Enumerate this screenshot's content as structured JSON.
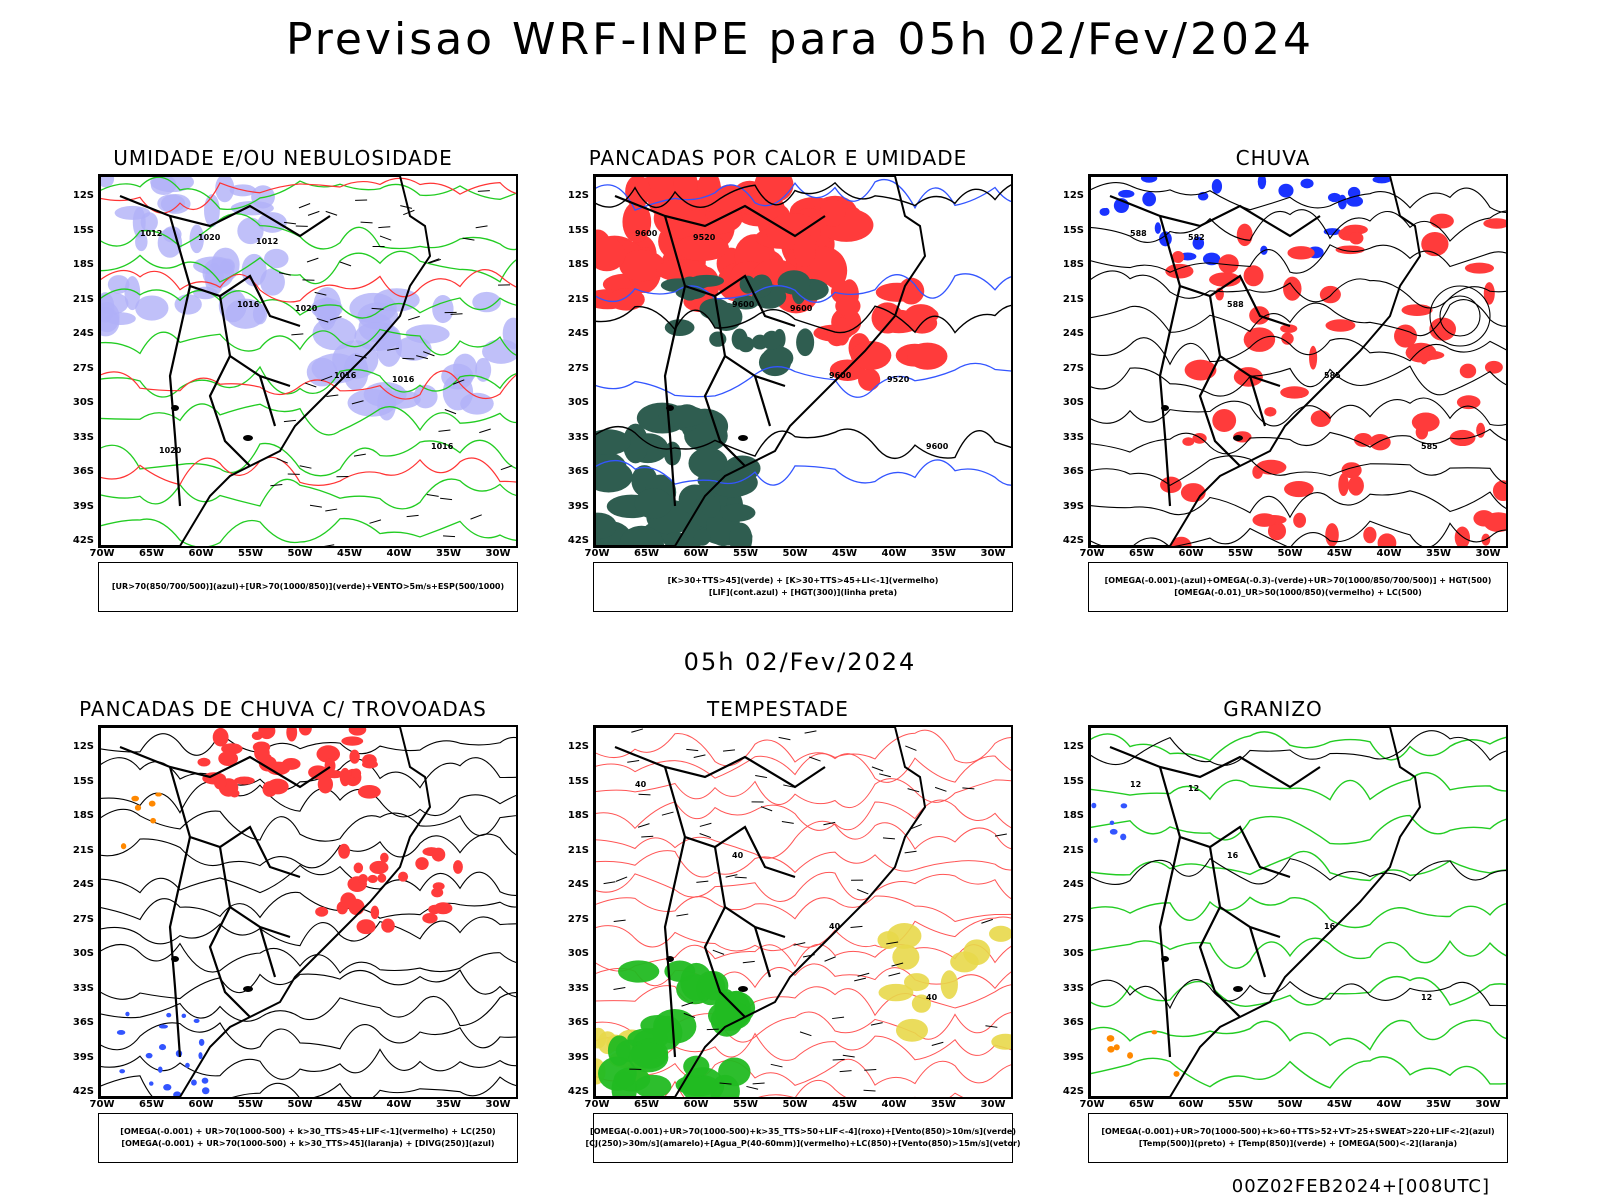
{
  "title": "Previsao WRF-INPE  para 05h 02/Fev/2024",
  "mid_time_label": "05h 02/Fev/2024",
  "footer_stamp": "00Z02FEB2024+[008UTC]",
  "lat_labels": [
    "12S",
    "15S",
    "18S",
    "21S",
    "24S",
    "27S",
    "30S",
    "33S",
    "36S",
    "39S",
    "42S"
  ],
  "lon_labels": [
    "70W",
    "65W",
    "60W",
    "55W",
    "50W",
    "45W",
    "40W",
    "35W",
    "30W"
  ],
  "panels": [
    {
      "title": "UMIDADE E/OU NEBULOSIDADE",
      "legend": [
        "[UR>70(850/700/500)](azul)+[UR>70(1000/850)](verde)+VENTO>5m/s+ESP(500/1000)"
      ],
      "contour_labels": [
        "1012",
        "1016",
        "1016",
        "1016",
        "1020",
        "1020",
        "1016",
        "1020",
        "1012"
      ],
      "colors": {
        "fill": "#b0b0f8",
        "contour_a": "#22cc22",
        "contour_b": "#ff3333",
        "vector": "#000000"
      }
    },
    {
      "title": "PANCADAS POR CALOR E UMIDADE",
      "legend": [
        "[K>30+TTS>45](verde) + [K>30+TTS>45+LI<-1](vermelho)",
        "[LIF](cont.azul) + [HGT(300)](linha preta)"
      ],
      "contour_labels": [
        "9600",
        "9600",
        "9600",
        "9600",
        "9520",
        "9600",
        "9520"
      ],
      "colors": {
        "fill": "#ff3b3b",
        "fill_b": "#2f5d50",
        "contour_a": "#3355ff",
        "contour_b": "#000000"
      }
    },
    {
      "title": "CHUVA",
      "legend": [
        "[OMEGA(-0.001)-(azul)+OMEGA(-0.3)-(verde)+UR>70(1000/850/700/500)] + HGT(500)",
        "[OMEGA(-0.01)_UR>50(1000/850)(vermelho) + LC(500)"
      ],
      "contour_labels": [
        "588",
        "588",
        "585",
        "585",
        "582"
      ],
      "colors": {
        "fill": "#ff3b3b",
        "fill_b": "#1a33ff",
        "contour_a": "#000000",
        "contour_b": "#22cc22"
      }
    },
    {
      "title": "PANCADAS DE CHUVA C/ TROVOADAS",
      "legend": [
        "[OMEGA(-0.001) + UR>70(1000-500) + k>30_TTS>45+LIF<-1](vermelho) + LC(250)",
        "[OMEGA(-0.001) + UR>70(1000-500) + k>30_TTS>45](laranja) + [DIVG(250)](azul)"
      ],
      "contour_labels": [],
      "colors": {
        "fill": "#ff3b3b",
        "fill_b": "#3355ff",
        "fill_c": "#ff8800",
        "contour_a": "#000000"
      }
    },
    {
      "title": "TEMPESTADE",
      "legend": [
        "[OMEGA(-0.001)+UR>70(1000-500)+k>35_TTS>50+LIF<-4](roxo)+[Vento(850)>10m/s](verde)",
        "[CJ(250)>30m/s](amarelo)+[Agua_P(40-60mm)](vermelho)+LC(850)+[Vento(850)>15m/s](vetor)"
      ],
      "contour_labels": [
        "40",
        "40",
        "40",
        "40"
      ],
      "colors": {
        "fill": "#e8d84a",
        "fill_b": "#22bb22",
        "contour_a": "#ff5555",
        "vector": "#000000"
      }
    },
    {
      "title": "GRANIZO",
      "legend": [
        "[OMEGA(-0.001)+UR>70(1000-500)+k>60+TTS>52+VT>25+SWEAT>220+LIF<-2](azul)",
        "[Temp(500)](preto) + [Temp(850)](verde) + [OMEGA(500)<-2](laranja)"
      ],
      "contour_labels": [
        "12",
        "16",
        "16",
        "12",
        "12"
      ],
      "colors": {
        "contour_a": "#22cc22",
        "contour_b": "#000000",
        "fill": "#3355ff",
        "fill_b": "#ff8800"
      }
    }
  ]
}
